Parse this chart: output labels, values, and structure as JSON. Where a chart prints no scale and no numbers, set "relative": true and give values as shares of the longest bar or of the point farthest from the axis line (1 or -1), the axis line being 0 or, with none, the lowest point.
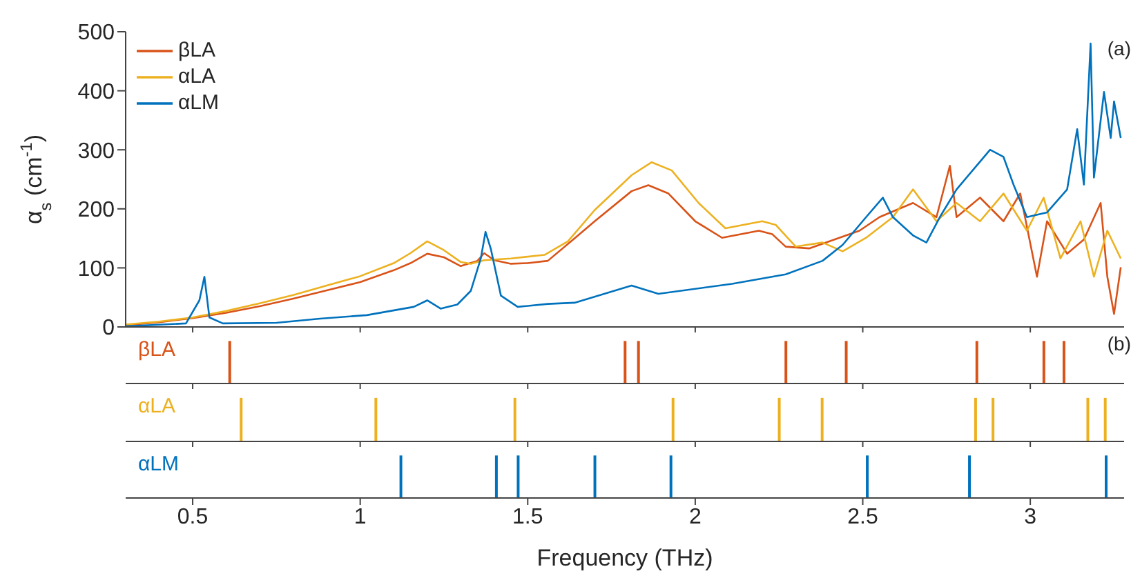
{
  "chart_data": [
    {
      "type": "line",
      "ylabel": "α$_{s}$ (cm$^{-1}$)",
      "xlim": [
        0.3,
        3.28
      ],
      "xticks": [
        0.5,
        1,
        1.5,
        2,
        2.5,
        3
      ],
      "ylim": [
        0,
        500
      ],
      "yticks": [
        0,
        100,
        200,
        300,
        400,
        500
      ],
      "tick_labels": "y",
      "legend": "top left",
      "grid": false,
      "annotations": [
        "(a)"
      ],
      "series": [
        {
          "name": "βLA",
          "color": "#d95319",
          "x": [
            0.3,
            0.4,
            0.5,
            0.6,
            0.7,
            0.8,
            0.9,
            1.0,
            1.1,
            1.15,
            1.2,
            1.25,
            1.3,
            1.35,
            1.37,
            1.4,
            1.45,
            1.5,
            1.56,
            1.64,
            1.7,
            1.81,
            1.86,
            1.92,
            2.0,
            2.08,
            2.19,
            2.23,
            2.27,
            2.34,
            2.42,
            2.49,
            2.55,
            2.65,
            2.72,
            2.76,
            2.78,
            2.85,
            2.92,
            2.97,
            3.02,
            3.05,
            3.11,
            3.16,
            3.21,
            3.23,
            3.25,
            3.27
          ],
          "values": [
            3,
            8,
            15,
            24,
            35,
            48,
            62,
            76,
            96,
            108,
            124,
            118,
            103,
            112,
            125,
            113,
            107,
            108,
            112,
            150,
            179,
            230,
            240,
            226,
            179,
            151,
            163,
            157,
            136,
            133,
            149,
            163,
            186,
            210,
            186,
            273,
            186,
            219,
            179,
            226,
            85,
            179,
            124,
            148,
            210,
            85,
            22,
            101
          ]
        },
        {
          "name": "αLA",
          "color": "#edb120",
          "x": [
            0.3,
            0.4,
            0.5,
            0.6,
            0.7,
            0.8,
            0.9,
            1.0,
            1.1,
            1.15,
            1.2,
            1.25,
            1.3,
            1.33,
            1.37,
            1.45,
            1.55,
            1.62,
            1.7,
            1.81,
            1.87,
            1.93,
            2.01,
            2.09,
            2.2,
            2.24,
            2.3,
            2.38,
            2.44,
            2.51,
            2.59,
            2.65,
            2.72,
            2.78,
            2.85,
            2.92,
            2.99,
            3.04,
            3.09,
            3.15,
            3.19,
            3.23,
            3.27
          ],
          "values": [
            4,
            9,
            16,
            27,
            40,
            54,
            70,
            86,
            108,
            125,
            145,
            130,
            110,
            107,
            113,
            116,
            122,
            145,
            198,
            257,
            279,
            265,
            210,
            167,
            179,
            173,
            136,
            143,
            128,
            151,
            186,
            233,
            179,
            210,
            179,
            226,
            163,
            219,
            116,
            179,
            85,
            163,
            116
          ]
        },
        {
          "name": "αLM",
          "color": "#0072bd",
          "x": [
            0.3,
            0.48,
            0.52,
            0.535,
            0.55,
            0.59,
            0.75,
            0.88,
            1.02,
            1.16,
            1.2,
            1.24,
            1.29,
            1.33,
            1.36,
            1.374,
            1.39,
            1.42,
            1.47,
            1.56,
            1.64,
            1.81,
            1.89,
            2.11,
            2.27,
            2.38,
            2.44,
            2.51,
            2.56,
            2.59,
            2.65,
            2.69,
            2.73,
            2.78,
            2.85,
            2.88,
            2.92,
            2.95,
            2.99,
            3.05,
            3.11,
            3.14,
            3.16,
            3.18,
            3.19,
            3.22,
            3.24,
            3.25,
            3.27
          ],
          "values": [
            1,
            6,
            45,
            85,
            16,
            6,
            7,
            14,
            20,
            34,
            45,
            31,
            38,
            61,
            116,
            161,
            132,
            53,
            34,
            39,
            41,
            70,
            56,
            73,
            89,
            112,
            139,
            186,
            219,
            186,
            155,
            143,
            186,
            233,
            280,
            300,
            288,
            241,
            186,
            194,
            233,
            335,
            241,
            480,
            253,
            398,
            320,
            382,
            320
          ]
        }
      ]
    },
    {
      "type": "bar",
      "relative": true,
      "xlim": [
        0.3,
        3.28
      ],
      "xticks": [
        0.5,
        1,
        1.5,
        2,
        2.5,
        3
      ],
      "tick_labels": false,
      "annotations": [
        "(b)"
      ],
      "series": [
        {
          "name": "βLA",
          "color": "#d95319",
          "x": [
            0.61,
            1.79,
            1.83,
            2.27,
            2.45,
            2.84,
            3.04,
            3.1
          ],
          "values": [
            1,
            1,
            1,
            1,
            1,
            1,
            1,
            1
          ]
        }
      ]
    },
    {
      "type": "bar",
      "relative": true,
      "xlim": [
        0.3,
        3.28
      ],
      "xticks": [
        0.5,
        1,
        1.5,
        2,
        2.5,
        3
      ],
      "tick_labels": false,
      "series": [
        {
          "name": "αLA",
          "color": "#edb120",
          "x": [
            0.646,
            1.048,
            1.463,
            1.935,
            2.252,
            2.38,
            2.838,
            2.89,
            3.173,
            3.225
          ],
          "values": [
            1,
            1,
            1,
            1,
            1,
            1,
            1,
            1,
            1,
            1
          ]
        }
      ]
    },
    {
      "type": "bar",
      "relative": true,
      "xlim": [
        0.3,
        3.28
      ],
      "xticks": [
        0.5,
        1,
        1.5,
        2,
        2.5,
        3
      ],
      "tick_labels": "x",
      "xlabel": "Frequency (THz)",
      "series": [
        {
          "name": "αLM",
          "color": "#0072bd",
          "x": [
            1.121,
            1.406,
            1.471,
            1.7,
            1.927,
            2.513,
            2.818,
            3.226
          ],
          "values": [
            1,
            1,
            1,
            1,
            1,
            1,
            1,
            1
          ]
        }
      ]
    }
  ]
}
